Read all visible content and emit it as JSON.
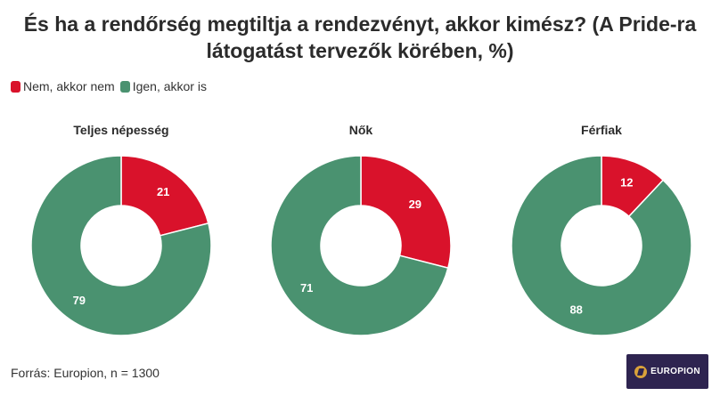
{
  "title": "És ha a rendőrség megtiltja a rendezvényt, akkor kimész? (A Pride-ra látogatást tervezők körében, %)",
  "legend": [
    {
      "label": "Nem, akkor nem",
      "color": "#d9122b"
    },
    {
      "label": "Igen, akkor is",
      "color": "#4a9270"
    }
  ],
  "chart_data": [
    {
      "type": "pie",
      "title": "Teljes népesség",
      "categories": [
        "Nem, akkor nem",
        "Igen, akkor is"
      ],
      "values": [
        21,
        79
      ]
    },
    {
      "type": "pie",
      "title": "Nők",
      "categories": [
        "Nem, akkor nem",
        "Igen, akkor is"
      ],
      "values": [
        29,
        71
      ]
    },
    {
      "type": "pie",
      "title": "Férfiak",
      "categories": [
        "Nem, akkor nem",
        "Igen, akkor is"
      ],
      "values": [
        12,
        88
      ]
    }
  ],
  "source": "Forrás: Europion, n = 1300",
  "logo": {
    "text": "EUROPION",
    "icon": "europion-logo-icon"
  }
}
